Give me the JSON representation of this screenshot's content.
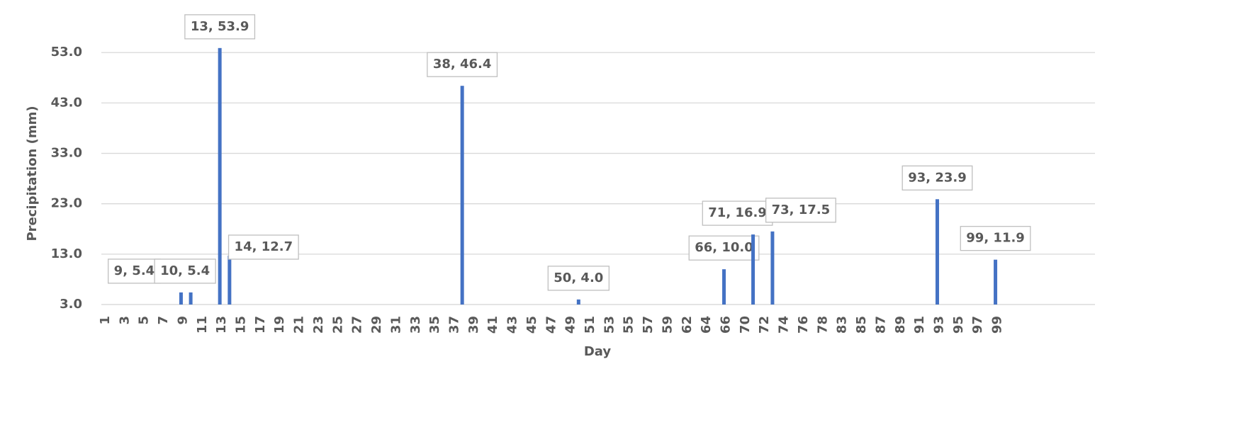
{
  "chart_data": {
    "type": "bar",
    "x_label": "Day",
    "y_label": "Precipitation (mm)",
    "categories": [
      1,
      null,
      3,
      null,
      5,
      null,
      7,
      null,
      9,
      null,
      11,
      null,
      13,
      null,
      15,
      null,
      17,
      null,
      19,
      null,
      21,
      null,
      23,
      null,
      25,
      null,
      27,
      null,
      29,
      null,
      31,
      null,
      33,
      null,
      35,
      null,
      37,
      null,
      39,
      null,
      41,
      null,
      43,
      null,
      45,
      null,
      47,
      null,
      49,
      null,
      51,
      null,
      53,
      null,
      55,
      null,
      57,
      null,
      59,
      null,
      62,
      null,
      64,
      null,
      66,
      null,
      70,
      null,
      72,
      null,
      74,
      null,
      76,
      null,
      78,
      null,
      83,
      null,
      85,
      null,
      87,
      null,
      89,
      null,
      91,
      null,
      93,
      null,
      95,
      null,
      97,
      null,
      99,
      null
    ],
    "values": [
      0,
      0,
      0,
      0,
      0,
      0,
      0,
      0,
      5.4,
      5.4,
      0,
      0,
      53.9,
      12.7,
      0,
      0,
      0,
      0,
      0,
      0,
      0,
      0,
      0,
      0,
      0,
      0,
      0,
      0,
      0,
      0,
      0,
      0,
      0,
      0,
      0,
      0,
      0,
      46.4,
      0,
      0,
      0,
      0,
      0,
      0,
      0,
      0,
      0,
      0,
      0,
      4.0,
      0,
      0,
      0,
      0,
      0,
      0,
      0,
      0,
      0,
      0,
      0,
      0,
      0,
      0,
      10.0,
      0,
      0,
      16.9,
      0,
      17.5,
      0,
      0,
      0,
      0,
      0,
      0,
      0,
      0,
      0,
      0,
      0,
      0,
      0,
      0,
      0,
      0,
      23.9,
      0,
      0,
      0,
      0,
      0,
      11.9,
      0
    ],
    "value_labels": [
      null,
      null,
      null,
      null,
      null,
      null,
      null,
      null,
      "9, 5.4",
      "10, 5.4",
      null,
      null,
      "13, 53.9",
      "14, 12.7",
      null,
      null,
      null,
      null,
      null,
      null,
      null,
      null,
      null,
      null,
      null,
      null,
      null,
      null,
      null,
      null,
      null,
      null,
      null,
      null,
      null,
      null,
      null,
      "38, 46.4",
      null,
      null,
      null,
      null,
      null,
      null,
      null,
      null,
      null,
      null,
      null,
      "50, 4.0",
      null,
      null,
      null,
      null,
      null,
      null,
      null,
      null,
      null,
      null,
      null,
      null,
      null,
      null,
      "66, 10.0",
      null,
      null,
      "71, 16.9",
      null,
      "73, 17.5",
      null,
      null,
      null,
      null,
      null,
      null,
      null,
      null,
      null,
      null,
      null,
      null,
      null,
      null,
      null,
      null,
      "93, 23.9",
      null,
      null,
      null,
      null,
      null,
      "99, 11.9",
      null
    ],
    "color": "#4472c4",
    "ylim": [
      3,
      55
    ],
    "yticks": [
      {
        "value": 3,
        "label": "3.0"
      },
      {
        "value": 13,
        "label": "13.0"
      },
      {
        "value": 23,
        "label": "23.0"
      },
      {
        "value": 33,
        "label": "33.0"
      },
      {
        "value": 43,
        "label": "43.0"
      },
      {
        "value": 53,
        "label": "53.0"
      }
    ],
    "grid": true
  }
}
